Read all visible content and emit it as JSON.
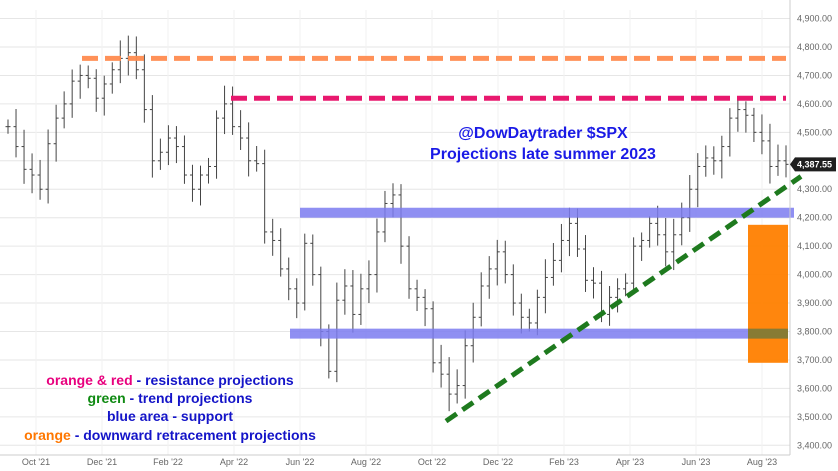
{
  "chart_data": {
    "type": "candlestick",
    "title": "@DowDaytrader $SPX",
    "subtitle": "Projections late summer 2023",
    "x_tick_labels": [
      "Oct '21",
      "Dec '21",
      "Feb '22",
      "Apr '22",
      "Jun '22",
      "Aug '22",
      "Oct '22",
      "Dec '22",
      "Feb '23",
      "Apr '23",
      "Jun '23",
      "Aug '23"
    ],
    "y_tick_labels": [
      "3,400.00",
      "3,500.00",
      "3,600.00",
      "3,700.00",
      "3,800.00",
      "3,900.00",
      "4,000.00",
      "4,100.00",
      "4,200.00",
      "4,300.00",
      "4,400.00",
      "4,500.00",
      "4,600.00",
      "4,700.00",
      "4,800.00",
      "4,900.00"
    ],
    "ylim": [
      3380,
      4930
    ],
    "x_index_range": [
      0,
      97
    ],
    "grid": true,
    "last_price_label": "4,387.55",
    "last_price": 4387.55,
    "series": [
      {
        "values_comment": "approximate weekly closes Sep 2021 – Aug 2023",
        "close": [
          4520,
          4450,
          4370,
          4350,
          4300,
          4460,
          4550,
          4600,
          4680,
          4700,
          4690,
          4620,
          4670,
          4720,
          4760,
          4780,
          4720,
          4580,
          4400,
          4430,
          4480,
          4450,
          4350,
          4300,
          4350,
          4380,
          4550,
          4600,
          4520,
          4480,
          4400,
          4390,
          4150,
          4120,
          4020,
          3950,
          3900,
          4110,
          4000,
          3800,
          3660,
          3910,
          3960,
          3860,
          3950,
          4000,
          4150,
          4250,
          4280,
          4100,
          3950,
          3920,
          3880,
          3690,
          3650,
          3580,
          3610,
          3750,
          3850,
          3960,
          4020,
          4080,
          4000,
          3900,
          3850,
          3830,
          3920,
          3990,
          4050,
          4120,
          4180,
          4090,
          3980,
          3970,
          3860,
          3920,
          3950,
          3970,
          4100,
          4120,
          4180,
          4140,
          4080,
          4140,
          4200,
          4300,
          4380,
          4410,
          4400,
          4450,
          4550,
          4580,
          4560,
          4500,
          4470,
          4380,
          4400,
          4387.55
        ]
      }
    ],
    "projections": {
      "orange_resistance": 4760,
      "red_resistance": 4620,
      "support_upper": [
        4200,
        4235
      ],
      "support_lower": [
        3775,
        3810
      ],
      "trend_start": {
        "index": 60,
        "value": 3485
      },
      "trend_end": {
        "index": 97,
        "value": 4345
      },
      "retracement_box": [
        3690,
        4175
      ]
    },
    "legend": [
      {
        "text": "orange & red",
        "suffix": " - resistance projections",
        "color": "#e8007e"
      },
      {
        "text": "green",
        "suffix": " - trend projections",
        "color": "#0f8a12"
      },
      {
        "text": "blue area",
        "suffix": " - support",
        "color": "#1414c8"
      },
      {
        "text": "orange",
        "suffix": " - downward retracement projections",
        "color": "#ff7700"
      }
    ],
    "colors": {
      "candles": "#444444",
      "orange_line": "#ff8c50",
      "red_line": "#e8186e",
      "support": "#7b7bf0",
      "trend": "#1e7a1e",
      "retracement": "#ff8000",
      "annotation_title": "#1a1ae6",
      "legend_blue": "#1414c8"
    }
  }
}
